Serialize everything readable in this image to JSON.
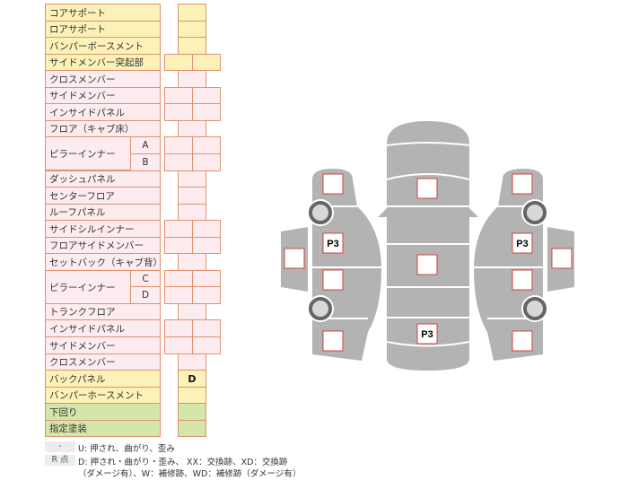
{
  "rows": [
    {
      "label": "コアサポート",
      "color": "y",
      "cells": 1,
      "mark": ""
    },
    {
      "label": "ロアサポート",
      "color": "y",
      "cells": 1,
      "mark": ""
    },
    {
      "label": "バンパーボースメント",
      "color": "y",
      "cells": 1,
      "mark": ""
    },
    {
      "label": "サイドメンバー突起部",
      "color": "y",
      "cells": 2,
      "mark": ""
    },
    {
      "label": "クロスメンバー",
      "color": "p",
      "cells": 1,
      "mark": ""
    },
    {
      "label": "サイドメンバー",
      "color": "p",
      "cells": 2,
      "mark": ""
    },
    {
      "label": "インサイドパネル",
      "color": "p",
      "cells": 2,
      "mark": ""
    },
    {
      "label": "フロア（キャブ床）",
      "color": "p",
      "cells": 1,
      "mark": ""
    },
    {
      "label": "ピラーインナー",
      "sub": "A",
      "color": "p",
      "cells": 2,
      "mark": ""
    },
    {
      "label": "ピラーインナー",
      "sub": "B",
      "color": "p",
      "cells": 2,
      "mark": ""
    },
    {
      "label": "ダッシュパネル",
      "color": "p",
      "cells": 1,
      "mark": ""
    },
    {
      "label": "センターフロア",
      "color": "p",
      "cells": 1,
      "mark": ""
    },
    {
      "label": "ルーフパネル",
      "color": "p",
      "cells": 1,
      "mark": ""
    },
    {
      "label": "サイドシルインナー",
      "color": "p",
      "cells": 2,
      "mark": ""
    },
    {
      "label": "フロアサイドメンバー",
      "color": "p",
      "cells": 2,
      "mark": ""
    },
    {
      "label": "セットバック（キャブ背）",
      "color": "p",
      "cells": 1,
      "mark": ""
    },
    {
      "label": "ピラーインナー",
      "sub": "C",
      "color": "p",
      "cells": 2,
      "mark": ""
    },
    {
      "label": "ピラーインナー",
      "sub": "D",
      "color": "p",
      "cells": 2,
      "mark": ""
    },
    {
      "label": "トランクフロア",
      "color": "p",
      "cells": 1,
      "mark": ""
    },
    {
      "label": "インサイドパネル",
      "color": "p",
      "cells": 2,
      "mark": ""
    },
    {
      "label": "サイドメンバー",
      "color": "p",
      "cells": 2,
      "mark": ""
    },
    {
      "label": "クロスメンバー",
      "color": "p",
      "cells": 1,
      "mark": ""
    },
    {
      "label": "バックパネル",
      "color": "y",
      "cells": 1,
      "mark": "D"
    },
    {
      "label": "バンパーホースメント",
      "color": "y",
      "cells": 1,
      "mark": ""
    },
    {
      "label": "下回り",
      "color": "g",
      "cells": 1,
      "mark": ""
    },
    {
      "label": "指定塗装",
      "color": "g",
      "cells": 1,
      "mark": ""
    }
  ],
  "diagram": {
    "body_color": "#b3b3b3",
    "box_border": "#d04040",
    "left": {
      "front": "",
      "side_front": "P3",
      "door": "",
      "side_rear": "",
      "rear": ""
    },
    "center": {
      "hood": "",
      "roof": "",
      "trunk": "P3"
    },
    "right": {
      "front": "",
      "side_front": "P3",
      "door": "",
      "side_rear": "",
      "rear": ""
    }
  },
  "legend": [
    {
      "key": "-",
      "text": "U: 押され、曲がり、歪み"
    },
    {
      "key": "R 点",
      "text": "D: 押され・曲がり・歪み、 XX：交換跡、XD：交換跡",
      "text2": "（ダメージ有）、W：補修跡、WD：補修跡（ダメージ有）"
    }
  ]
}
